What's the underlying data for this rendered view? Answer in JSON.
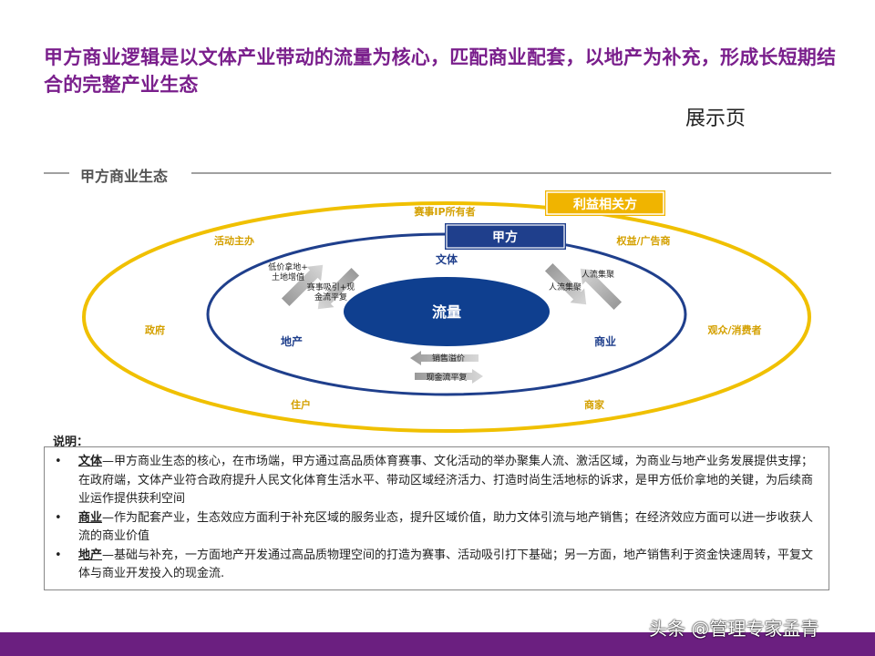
{
  "title": "甲方商业逻辑是以文体产业带动的流量为核心，匹配商业配套，以地产为补充，形成长短期结合的完整产业生态",
  "page_label": "展示页",
  "section_title": "甲方商业生态",
  "diagram": {
    "stakeholder_box": "利益相关方",
    "party_a_box": "甲方",
    "center": "流量",
    "inner_nodes": {
      "wenti": "文体",
      "dichan": "地产",
      "shangye": "商业"
    },
    "outer_labels": {
      "ip_owner": "赛事IP所有者",
      "event_host": "活动主办",
      "rights_ads": "权益/广告商",
      "government": "政府",
      "audience": "观众/消费者",
      "residents": "住户",
      "merchants": "商家"
    },
    "arrow_labels": {
      "low_price_land": "低价拿地+\n土地增值",
      "event_traffic": "赛事吸引+现\n金流平复",
      "traffic_gather_1": "人流集聚",
      "traffic_gather_2": "人流集聚",
      "sales_premium": "销售溢价",
      "cashflow_balance": "现金流平复"
    },
    "colors": {
      "outer_ring": "#f0c000",
      "inner_ring": "#1f3f8c",
      "center_fill": "#0f3f8f",
      "stakeholder": "#f0b400"
    }
  },
  "notes_title": "说明：",
  "notes": [
    {
      "term": "文体",
      "text": "—甲方商业生态的核心，在市场端，甲方通过高品质体育赛事、文化活动的举办聚集人流、激活区域，为商业与地产业务发展提供支撑；在政府端，文体产业符合政府提升人民文化体育生活水平、带动区域经济活力、打造时尚生活地标的诉求，是甲方低价拿地的关键，为后续商业运作提供获利空间"
    },
    {
      "term": "商业",
      "text": "—作为配套产业，生态效应方面利于补充区域的服务业态，提升区域价值，助力文体引流与地产销售；在经济效应方面可以进一步收获人流的商业价值"
    },
    {
      "term": "地产",
      "text": "—基础与补充，一方面地产开发通过高品质物理空间的打造为赛事、活动吸引打下基础；另一方面，地产销售利于资金快速周转，平复文体与商业开发投入的现金流."
    }
  ],
  "watermark": "头条 @管理专家孟青"
}
